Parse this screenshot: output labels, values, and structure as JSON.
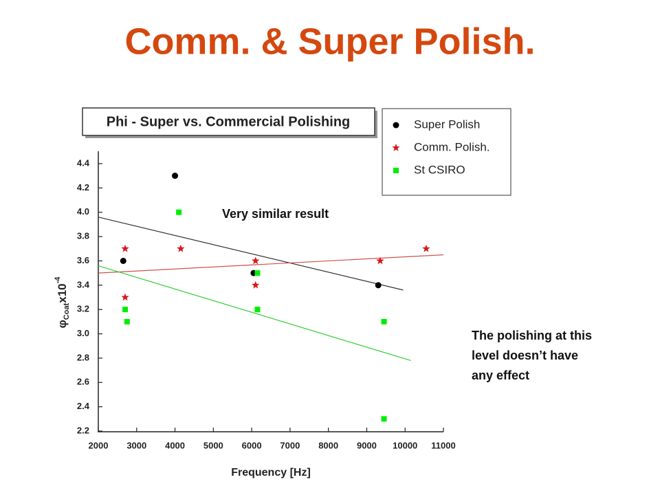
{
  "slide_title": "Comm. & Super Polish.",
  "annotations": {
    "similar": "Very similar result",
    "conclusion": [
      "The polishing at this",
      "level doesn’t have",
      "any effect"
    ]
  },
  "chart_data": {
    "type": "scatter",
    "title": "Phi - Super vs. Commercial Polishing",
    "xlabel": "Frequency [Hz]",
    "ylabel": {
      "symbol": "φ",
      "sub": "Coat",
      "main": "x10",
      "sup": "-4"
    },
    "xlim": [
      2000,
      11000
    ],
    "ylim": [
      2.2,
      4.4
    ],
    "xticks": [
      2000,
      3000,
      4000,
      5000,
      6000,
      7000,
      8000,
      9000,
      10000,
      11000
    ],
    "yticks": [
      2.2,
      2.4,
      2.6,
      2.8,
      {
        "value": 3,
        "label": "3.0"
      },
      3.2,
      3.4,
      3.6,
      3.8,
      {
        "value": 4,
        "label": "4.0"
      },
      4.2,
      4.4
    ],
    "series": [
      {
        "name": "Super Polish",
        "color": "#000000",
        "marker": "circle",
        "x": [
          2650,
          4000,
          6050,
          9300
        ],
        "values": [
          3.6,
          4.3,
          3.5,
          3.4
        ]
      },
      {
        "name": "Comm. Polish.",
        "color": "#d7191c",
        "marker": "star",
        "x": [
          2700,
          2700,
          4150,
          6100,
          6100,
          9350,
          10550
        ],
        "values": [
          3.7,
          3.3,
          3.7,
          3.6,
          3.4,
          3.6,
          3.7
        ]
      },
      {
        "name": "St CSIRO",
        "color": "#00ee00",
        "marker": "square",
        "x": [
          2700,
          2750,
          4100,
          6150,
          6150,
          9450,
          9450
        ],
        "values": [
          3.2,
          3.1,
          4.0,
          3.5,
          3.2,
          3.1,
          2.3
        ]
      }
    ],
    "fit_lines": [
      {
        "color": "#333333",
        "x": [
          2000,
          9950
        ],
        "values": [
          3.96,
          3.36
        ]
      },
      {
        "color": "#d05050",
        "x": [
          2000,
          11000
        ],
        "values": [
          3.5,
          3.65
        ]
      },
      {
        "color": "#33cc33",
        "x": [
          2000,
          10150
        ],
        "values": [
          3.56,
          2.78
        ]
      }
    ]
  }
}
